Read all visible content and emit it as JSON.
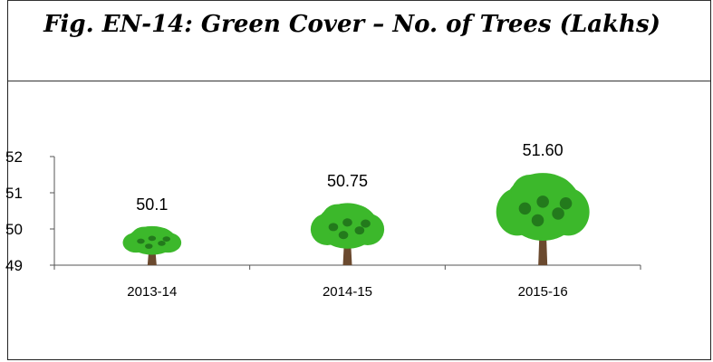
{
  "figure": {
    "title": "Fig. EN-14:  Green Cover – No. of Trees (Lakhs)"
  },
  "chart_data": {
    "type": "bar",
    "title": "Fig. EN-14:  Green Cover – No. of Trees (Lakhs)",
    "categories": [
      "2013-14",
      "2014-15",
      "2015-16"
    ],
    "values": [
      50.1,
      50.75,
      51.6
    ],
    "value_labels": [
      "50.1",
      "50.75",
      "51.60"
    ],
    "xlabel": "",
    "ylabel": "",
    "ylim": [
      49,
      52
    ],
    "yticks": [
      49,
      50,
      51,
      52
    ],
    "grid": false,
    "marker": "tree-icon",
    "colors": {
      "foliage": "#3cb82b",
      "foliage_dark": "#1f6e1a",
      "trunk": "#6b4a2f",
      "axis": "#555555"
    }
  }
}
